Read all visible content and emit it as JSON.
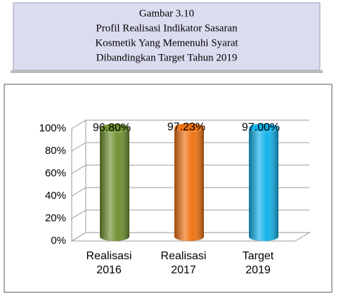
{
  "chart_data": {
    "type": "bar",
    "title": [
      "Gambar 3.10",
      "Profil  Realisasi Indikator Sasaran",
      "Kosmetik Yang Memenuhi Syarat",
      "Dibandingkan Target Tahun 2019"
    ],
    "categories": [
      [
        "Realisasi",
        "2016"
      ],
      [
        "Realisasi",
        "2017"
      ],
      [
        "Target",
        "2019"
      ]
    ],
    "values": [
      96.8,
      97.23,
      97.0
    ],
    "value_labels": [
      "96.80%",
      "97.23%",
      "97.00%"
    ],
    "colors": [
      "#6f9230",
      "#f07413",
      "#13b3ea"
    ],
    "ylim": [
      0,
      100
    ],
    "yticks": [
      {
        "value": 0,
        "label": "0%"
      },
      {
        "value": 20,
        "label": "20%"
      },
      {
        "value": 40,
        "label": "40%"
      },
      {
        "value": 60,
        "label": "60%"
      },
      {
        "value": 80,
        "label": "80%"
      },
      {
        "value": 100,
        "label": "100%"
      }
    ],
    "grid": true
  }
}
